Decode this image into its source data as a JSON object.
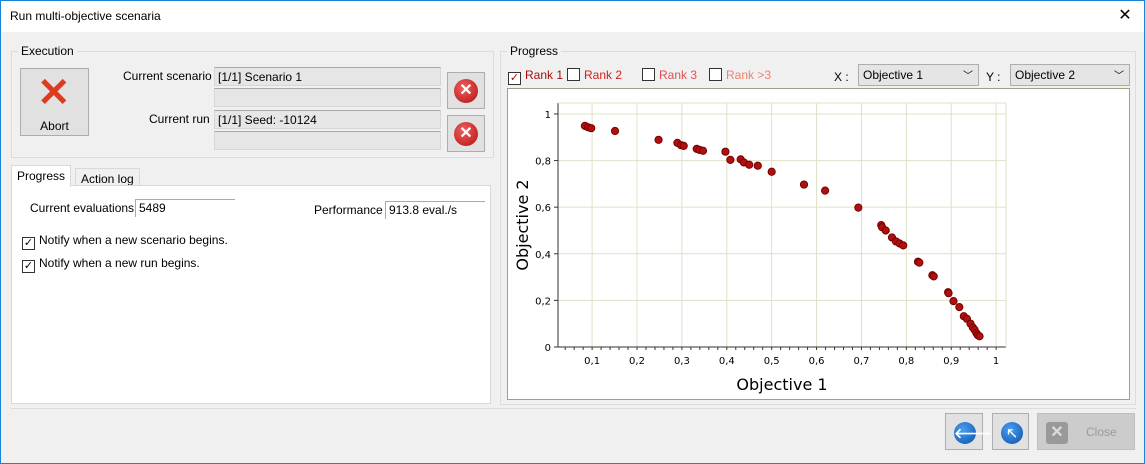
{
  "window": {
    "title": "Run multi-objective scenaria",
    "close_glyph": "✕"
  },
  "execution": {
    "label": "Execution",
    "abort_label": "Abort",
    "scenario_label": "Current scenario",
    "scenario_value": "[1/1] Scenario 1",
    "run_label": "Current run",
    "run_value": "[1/1] Seed: -10124",
    "scenario_progress": 0,
    "run_progress": 0
  },
  "tabs": [
    {
      "label": "Progress",
      "active": true
    },
    {
      "label": "Action log",
      "active": false
    }
  ],
  "progress_tab": {
    "evals_label": "Current evaluations",
    "evals_value": "5489",
    "perf_label": "Performance",
    "perf_value": "913.8 eval./s",
    "notify_scenario": "Notify when a new scenario begins.",
    "notify_run": "Notify when a new run begins."
  },
  "chart_panel": {
    "label": "Progress",
    "ranks": [
      {
        "label": "Rank 1",
        "checked": true,
        "color": "#a01010"
      },
      {
        "label": "Rank 2",
        "checked": false,
        "color": "#d02020"
      },
      {
        "label": "Rank 3",
        "checked": false,
        "color": "#e05050"
      },
      {
        "label": "Rank >3",
        "checked": false,
        "color": "#f08070"
      }
    ],
    "x_label": "X :",
    "x_value": "Objective 1",
    "y_label": "Y :",
    "y_value": "Objective 2"
  },
  "chart_data": {
    "type": "scatter",
    "xlabel": "Objective 1",
    "ylabel": "Objective 2",
    "xlim": [
      0.024,
      1.022
    ],
    "ylim": [
      0,
      1.047
    ],
    "grid": true,
    "point_color": "#b01010",
    "xticks": [
      "0,1",
      "0,2",
      "0,3",
      "0,4",
      "0,5",
      "0,6",
      "0,7",
      "0,8",
      "0,9",
      "1"
    ],
    "yticks": [
      "0",
      "0,2",
      "0,4",
      "0,6",
      "0,8",
      "1"
    ],
    "points": [
      [
        0.084,
        0.949
      ],
      [
        0.091,
        0.943
      ],
      [
        0.098,
        0.939
      ],
      [
        0.151,
        0.927
      ],
      [
        0.248,
        0.889
      ],
      [
        0.29,
        0.876
      ],
      [
        0.298,
        0.866
      ],
      [
        0.304,
        0.863
      ],
      [
        0.333,
        0.85
      ],
      [
        0.339,
        0.846
      ],
      [
        0.347,
        0.842
      ],
      [
        0.397,
        0.838
      ],
      [
        0.408,
        0.803
      ],
      [
        0.431,
        0.805
      ],
      [
        0.438,
        0.792
      ],
      [
        0.45,
        0.782
      ],
      [
        0.469,
        0.778
      ],
      [
        0.5,
        0.752
      ],
      [
        0.572,
        0.697
      ],
      [
        0.619,
        0.671
      ],
      [
        0.693,
        0.598
      ],
      [
        0.744,
        0.523
      ],
      [
        0.746,
        0.514
      ],
      [
        0.754,
        0.5
      ],
      [
        0.768,
        0.47
      ],
      [
        0.777,
        0.453
      ],
      [
        0.785,
        0.444
      ],
      [
        0.793,
        0.436
      ],
      [
        0.826,
        0.366
      ],
      [
        0.829,
        0.362
      ],
      [
        0.858,
        0.308
      ],
      [
        0.861,
        0.303
      ],
      [
        0.893,
        0.235
      ],
      [
        0.894,
        0.231
      ],
      [
        0.905,
        0.197
      ],
      [
        0.918,
        0.171
      ],
      [
        0.928,
        0.132
      ],
      [
        0.935,
        0.121
      ],
      [
        0.943,
        0.1
      ],
      [
        0.948,
        0.084
      ],
      [
        0.952,
        0.074
      ],
      [
        0.956,
        0.06
      ],
      [
        0.959,
        0.051
      ],
      [
        0.963,
        0.046
      ]
    ]
  },
  "footer": {
    "back_glyph": "🡐",
    "up_glyph": "🡔",
    "close_label": "Close"
  }
}
